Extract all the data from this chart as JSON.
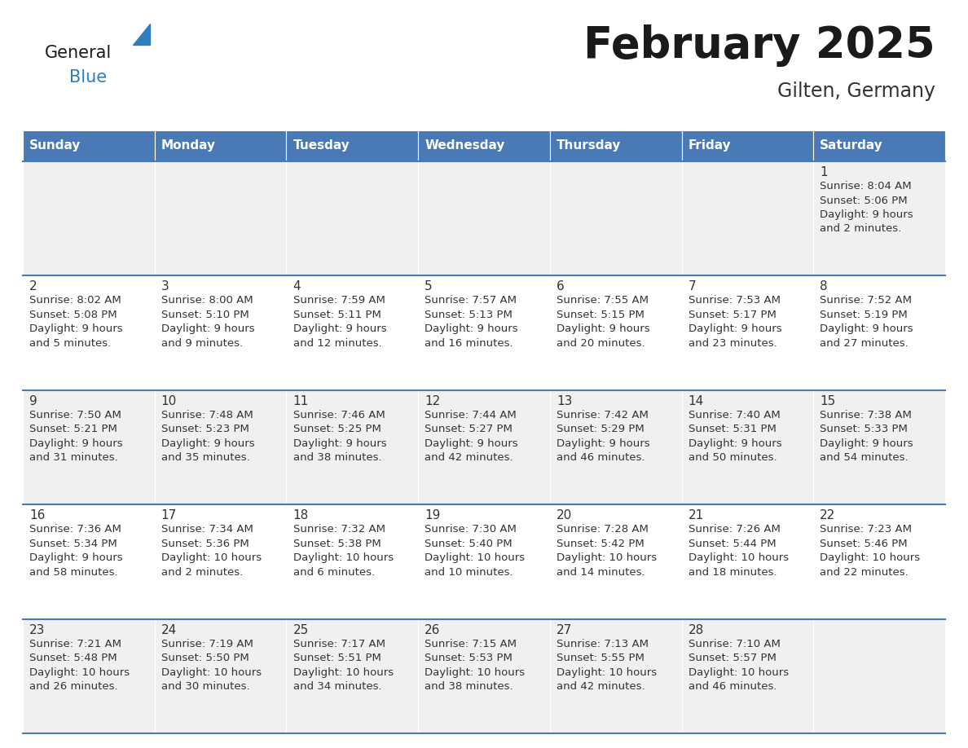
{
  "title": "February 2025",
  "subtitle": "Gilten, Germany",
  "header_bg": "#4a7ab5",
  "header_text": "#ffffff",
  "day_headers": [
    "Sunday",
    "Monday",
    "Tuesday",
    "Wednesday",
    "Thursday",
    "Friday",
    "Saturday"
  ],
  "row_bg_odd": "#f0f0f0",
  "row_bg_even": "#ffffff",
  "cell_text_color": "#333333",
  "title_color": "#1a1a1a",
  "subtitle_color": "#333333",
  "border_color": "#4a7ab5",
  "logo_general_color": "#1a1a1a",
  "logo_blue_color": "#2e7ec2",
  "days": [
    {
      "day": 1,
      "col": 6,
      "row": 0,
      "sunrise": "8:04 AM",
      "sunset": "5:06 PM",
      "daylight_h": "9 hours",
      "daylight_m": "and 2 minutes."
    },
    {
      "day": 2,
      "col": 0,
      "row": 1,
      "sunrise": "8:02 AM",
      "sunset": "5:08 PM",
      "daylight_h": "9 hours",
      "daylight_m": "and 5 minutes."
    },
    {
      "day": 3,
      "col": 1,
      "row": 1,
      "sunrise": "8:00 AM",
      "sunset": "5:10 PM",
      "daylight_h": "9 hours",
      "daylight_m": "and 9 minutes."
    },
    {
      "day": 4,
      "col": 2,
      "row": 1,
      "sunrise": "7:59 AM",
      "sunset": "5:11 PM",
      "daylight_h": "9 hours",
      "daylight_m": "and 12 minutes."
    },
    {
      "day": 5,
      "col": 3,
      "row": 1,
      "sunrise": "7:57 AM",
      "sunset": "5:13 PM",
      "daylight_h": "9 hours",
      "daylight_m": "and 16 minutes."
    },
    {
      "day": 6,
      "col": 4,
      "row": 1,
      "sunrise": "7:55 AM",
      "sunset": "5:15 PM",
      "daylight_h": "9 hours",
      "daylight_m": "and 20 minutes."
    },
    {
      "day": 7,
      "col": 5,
      "row": 1,
      "sunrise": "7:53 AM",
      "sunset": "5:17 PM",
      "daylight_h": "9 hours",
      "daylight_m": "and 23 minutes."
    },
    {
      "day": 8,
      "col": 6,
      "row": 1,
      "sunrise": "7:52 AM",
      "sunset": "5:19 PM",
      "daylight_h": "9 hours",
      "daylight_m": "and 27 minutes."
    },
    {
      "day": 9,
      "col": 0,
      "row": 2,
      "sunrise": "7:50 AM",
      "sunset": "5:21 PM",
      "daylight_h": "9 hours",
      "daylight_m": "and 31 minutes."
    },
    {
      "day": 10,
      "col": 1,
      "row": 2,
      "sunrise": "7:48 AM",
      "sunset": "5:23 PM",
      "daylight_h": "9 hours",
      "daylight_m": "and 35 minutes."
    },
    {
      "day": 11,
      "col": 2,
      "row": 2,
      "sunrise": "7:46 AM",
      "sunset": "5:25 PM",
      "daylight_h": "9 hours",
      "daylight_m": "and 38 minutes."
    },
    {
      "day": 12,
      "col": 3,
      "row": 2,
      "sunrise": "7:44 AM",
      "sunset": "5:27 PM",
      "daylight_h": "9 hours",
      "daylight_m": "and 42 minutes."
    },
    {
      "day": 13,
      "col": 4,
      "row": 2,
      "sunrise": "7:42 AM",
      "sunset": "5:29 PM",
      "daylight_h": "9 hours",
      "daylight_m": "and 46 minutes."
    },
    {
      "day": 14,
      "col": 5,
      "row": 2,
      "sunrise": "7:40 AM",
      "sunset": "5:31 PM",
      "daylight_h": "9 hours",
      "daylight_m": "and 50 minutes."
    },
    {
      "day": 15,
      "col": 6,
      "row": 2,
      "sunrise": "7:38 AM",
      "sunset": "5:33 PM",
      "daylight_h": "9 hours",
      "daylight_m": "and 54 minutes."
    },
    {
      "day": 16,
      "col": 0,
      "row": 3,
      "sunrise": "7:36 AM",
      "sunset": "5:34 PM",
      "daylight_h": "9 hours",
      "daylight_m": "and 58 minutes."
    },
    {
      "day": 17,
      "col": 1,
      "row": 3,
      "sunrise": "7:34 AM",
      "sunset": "5:36 PM",
      "daylight_h": "10 hours",
      "daylight_m": "and 2 minutes."
    },
    {
      "day": 18,
      "col": 2,
      "row": 3,
      "sunrise": "7:32 AM",
      "sunset": "5:38 PM",
      "daylight_h": "10 hours",
      "daylight_m": "and 6 minutes."
    },
    {
      "day": 19,
      "col": 3,
      "row": 3,
      "sunrise": "7:30 AM",
      "sunset": "5:40 PM",
      "daylight_h": "10 hours",
      "daylight_m": "and 10 minutes."
    },
    {
      "day": 20,
      "col": 4,
      "row": 3,
      "sunrise": "7:28 AM",
      "sunset": "5:42 PM",
      "daylight_h": "10 hours",
      "daylight_m": "and 14 minutes."
    },
    {
      "day": 21,
      "col": 5,
      "row": 3,
      "sunrise": "7:26 AM",
      "sunset": "5:44 PM",
      "daylight_h": "10 hours",
      "daylight_m": "and 18 minutes."
    },
    {
      "day": 22,
      "col": 6,
      "row": 3,
      "sunrise": "7:23 AM",
      "sunset": "5:46 PM",
      "daylight_h": "10 hours",
      "daylight_m": "and 22 minutes."
    },
    {
      "day": 23,
      "col": 0,
      "row": 4,
      "sunrise": "7:21 AM",
      "sunset": "5:48 PM",
      "daylight_h": "10 hours",
      "daylight_m": "and 26 minutes."
    },
    {
      "day": 24,
      "col": 1,
      "row": 4,
      "sunrise": "7:19 AM",
      "sunset": "5:50 PM",
      "daylight_h": "10 hours",
      "daylight_m": "and 30 minutes."
    },
    {
      "day": 25,
      "col": 2,
      "row": 4,
      "sunrise": "7:17 AM",
      "sunset": "5:51 PM",
      "daylight_h": "10 hours",
      "daylight_m": "and 34 minutes."
    },
    {
      "day": 26,
      "col": 3,
      "row": 4,
      "sunrise": "7:15 AM",
      "sunset": "5:53 PM",
      "daylight_h": "10 hours",
      "daylight_m": "and 38 minutes."
    },
    {
      "day": 27,
      "col": 4,
      "row": 4,
      "sunrise": "7:13 AM",
      "sunset": "5:55 PM",
      "daylight_h": "10 hours",
      "daylight_m": "and 42 minutes."
    },
    {
      "day": 28,
      "col": 5,
      "row": 4,
      "sunrise": "7:10 AM",
      "sunset": "5:57 PM",
      "daylight_h": "10 hours",
      "daylight_m": "and 46 minutes."
    }
  ],
  "fig_width": 11.88,
  "fig_height": 9.18,
  "dpi": 100
}
